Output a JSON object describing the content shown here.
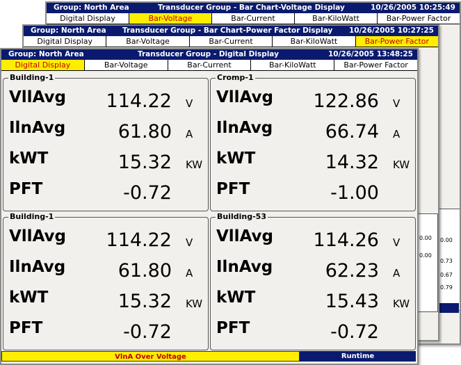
{
  "windows": {
    "back": {
      "group": "Group: North Area",
      "title": "Transducer Group - Bar Chart-Voltage Display",
      "datetime": "10/26/2005 10:25:49",
      "tabs": [
        "Digital Display",
        "Bar-Voltage",
        "Bar-Current",
        "Bar-KiloWatt",
        "Bar-Power Factor"
      ],
      "active_tab": 1,
      "edge_values": [
        "0.00",
        "0.73",
        "0.67",
        "0.79",
        "0.00",
        "0.00"
      ]
    },
    "middle": {
      "group": "Group: North Area",
      "title": "Transducer Group - Bar Chart-Power Factor Display",
      "datetime": "10/26/2005 10:27:25",
      "tabs": [
        "Digital Display",
        "Bar-Voltage",
        "Bar-Current",
        "Bar-KiloWatt",
        "Bar-Power Factor"
      ],
      "active_tab": 4
    },
    "front": {
      "group": "Group: North Area",
      "title": "Transducer Group - Digital Display",
      "datetime": "10/26/2005 13:48:25",
      "tabs": [
        "Digital Display",
        "Bar-Voltage",
        "Bar-Current",
        "Bar-KiloWatt",
        "Bar-Power Factor"
      ],
      "active_tab": 0,
      "panels": [
        {
          "name": "Building-1",
          "metrics": [
            {
              "label": "VllAvg",
              "value": "114.22",
              "unit": "V"
            },
            {
              "label": "IlnAvg",
              "value": "61.80",
              "unit": "A"
            },
            {
              "label": "kWT",
              "value": "15.32",
              "unit": "KW"
            },
            {
              "label": "PFT",
              "value": "-0.72",
              "unit": ""
            }
          ]
        },
        {
          "name": "Cromp-1",
          "metrics": [
            {
              "label": "VllAvg",
              "value": "122.86",
              "unit": "V"
            },
            {
              "label": "IlnAvg",
              "value": "66.74",
              "unit": "A"
            },
            {
              "label": "kWT",
              "value": "14.32",
              "unit": "KW"
            },
            {
              "label": "PFT",
              "value": "-1.00",
              "unit": ""
            }
          ]
        },
        {
          "name": "Building-1",
          "metrics": [
            {
              "label": "VllAvg",
              "value": "114.22",
              "unit": "V"
            },
            {
              "label": "IlnAvg",
              "value": "61.80",
              "unit": "A"
            },
            {
              "label": "kWT",
              "value": "15.32",
              "unit": "KW"
            },
            {
              "label": "PFT",
              "value": "-0.72",
              "unit": ""
            }
          ]
        },
        {
          "name": "Building-53",
          "metrics": [
            {
              "label": "VllAvg",
              "value": "114.26",
              "unit": "V"
            },
            {
              "label": "IlnAvg",
              "value": "62.23",
              "unit": "A"
            },
            {
              "label": "kWT",
              "value": "15.43",
              "unit": "KW"
            },
            {
              "label": "PFT",
              "value": "-0.72",
              "unit": ""
            }
          ]
        }
      ],
      "status": {
        "alarm": "VlnA Over Voltage",
        "mode": "Runtime"
      }
    }
  },
  "colors": {
    "titlebar": "#0a1a6e",
    "active_tab": "#ffee00",
    "active_tab_text": "#c00000",
    "background": "#f2f0ec"
  }
}
